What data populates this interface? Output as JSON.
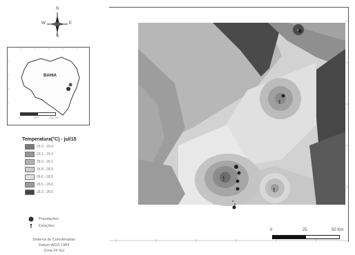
{
  "compass": {
    "n": "N",
    "s": "S",
    "e": "E",
    "w": "W"
  },
  "inset": {
    "state_label": "BAHIA",
    "scale_labels": [
      "0",
      "150",
      "300 km"
    ]
  },
  "legend": {
    "title": "Temperatura(°C) - jul/15",
    "classes": [
      {
        "label": "29.3 - 29.4",
        "color": "#7a7a7a"
      },
      {
        "label": "29.1 - 29.3",
        "color": "#969696"
      },
      {
        "label": "28.9 - 29.1",
        "color": "#b4b4b4"
      },
      {
        "label": "28.8 - 28.9",
        "color": "#cdcdcd"
      },
      {
        "label": "28.6 - 28.8",
        "color": "#e3e3e3"
      },
      {
        "label": "28.5 - 28.6",
        "color": "#9a9a9a"
      },
      {
        "label": "28.3 - 28.5",
        "color": "#444444"
      }
    ]
  },
  "symbols": {
    "population": "Populações",
    "stations": "Estações"
  },
  "footer": {
    "line1": "Sistema de Coordenadas",
    "line2": "Datum WGS 1984",
    "line3": "Zona 24 Sul"
  },
  "scalebar": {
    "labels": [
      "0",
      "25",
      "50 Km"
    ]
  },
  "map": {
    "point_labels": [
      "1",
      "2",
      "3",
      "4",
      "5"
    ]
  }
}
